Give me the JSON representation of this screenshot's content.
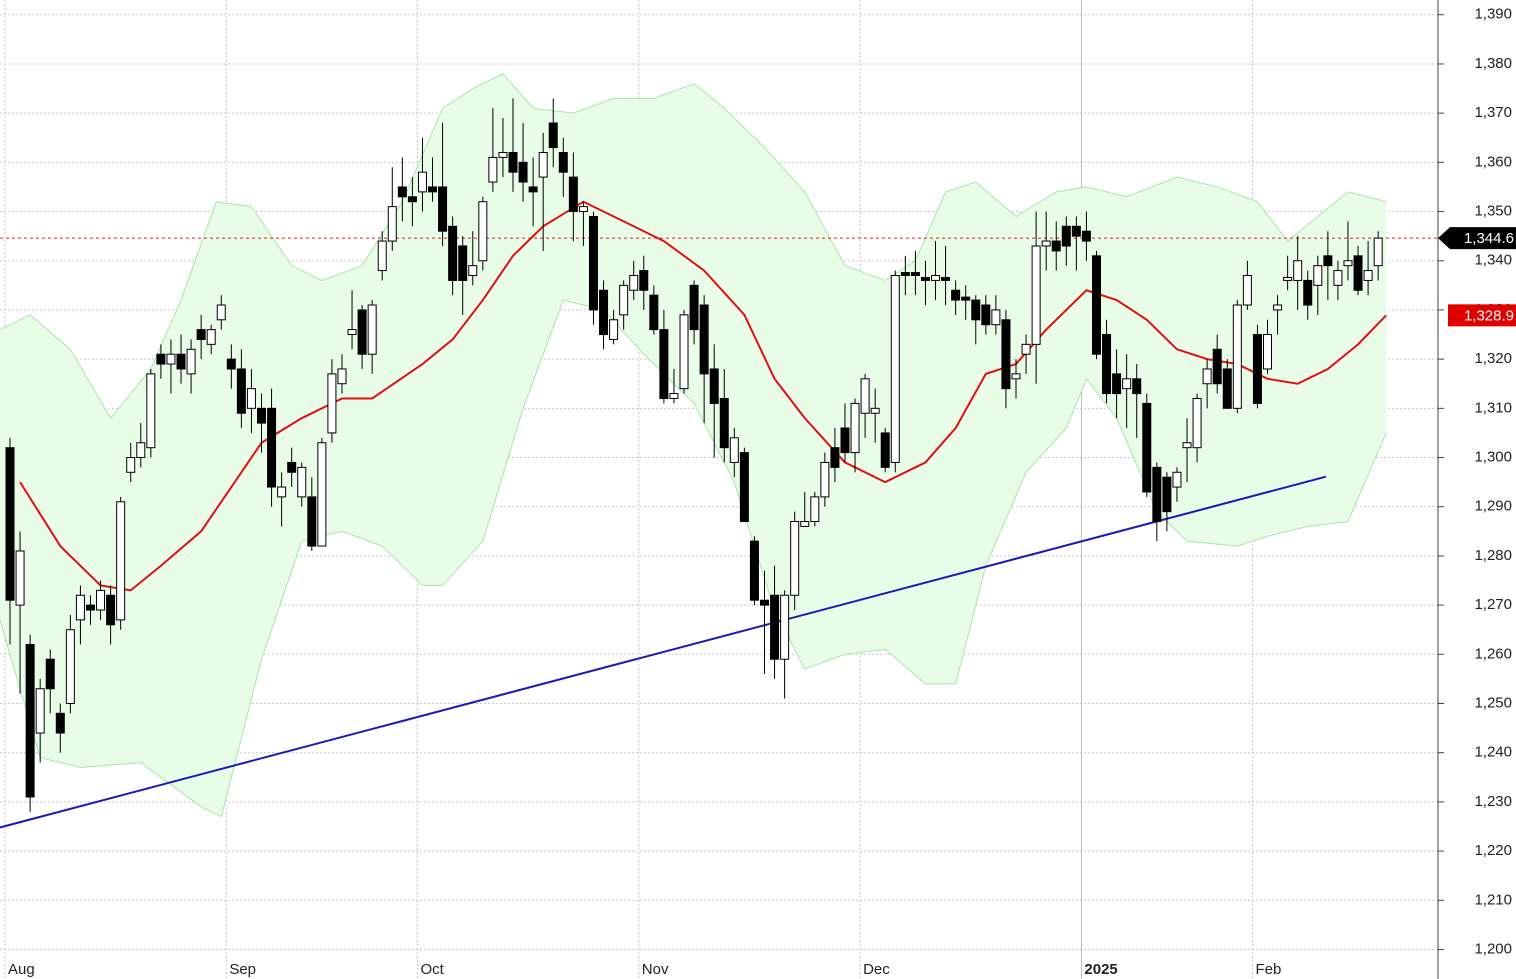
{
  "chart_data": {
    "type": "candlestick",
    "categories": [
      "Aug",
      null,
      null,
      null,
      null,
      null,
      null,
      null,
      null,
      null,
      null,
      null,
      null,
      null,
      null,
      null,
      null,
      null,
      null,
      null,
      null,
      null,
      "Sep",
      null,
      null,
      null,
      null,
      null,
      null,
      null,
      null,
      null,
      null,
      null,
      null,
      null,
      null,
      null,
      null,
      null,
      null,
      "Oct",
      null,
      null,
      null,
      null,
      null,
      null,
      null,
      null,
      null,
      null,
      null,
      null,
      null,
      null,
      null,
      null,
      null,
      null,
      null,
      null,
      null,
      "Nov",
      null,
      null,
      null,
      null,
      null,
      null,
      null,
      null,
      null,
      null,
      null,
      null,
      null,
      null,
      null,
      null,
      null,
      null,
      null,
      null,
      null,
      "Dec",
      null,
      null,
      null,
      null,
      null,
      null,
      null,
      null,
      null,
      null,
      null,
      null,
      null,
      null,
      null,
      null,
      null,
      null,
      null,
      null,
      null,
      "2025",
      null,
      null,
      null,
      null,
      null,
      null,
      null,
      null,
      null,
      null,
      null,
      null,
      null,
      null,
      null,
      null,
      "Feb",
      null,
      null,
      null,
      null,
      null,
      null,
      null,
      null,
      null,
      null,
      null
    ],
    "ohlc": [
      [
        1302,
        1304,
        1262,
        1271
      ],
      [
        1270,
        1285,
        1252,
        1281
      ],
      [
        1262,
        1264,
        1228,
        1231
      ],
      [
        1244,
        1255,
        1238,
        1253
      ],
      [
        1259,
        1261,
        1248,
        1253
      ],
      [
        1248,
        1250,
        1240,
        1244
      ],
      [
        1250,
        1268,
        1248,
        1265
      ],
      [
        1267,
        1274,
        1262,
        1272
      ],
      [
        1270,
        1272,
        1266,
        1269
      ],
      [
        1269,
        1275,
        1267,
        1273
      ],
      [
        1272,
        1274,
        1262,
        1266
      ],
      [
        1267,
        1292,
        1265,
        1291
      ],
      [
        1297,
        1303,
        1295,
        1300
      ],
      [
        1300,
        1307,
        1298,
        1303
      ],
      [
        1302,
        1318,
        1300,
        1317
      ],
      [
        1321,
        1323,
        1316,
        1319
      ],
      [
        1319,
        1324,
        1313,
        1321
      ],
      [
        1321,
        1325,
        1315,
        1318
      ],
      [
        1317,
        1324,
        1313,
        1322
      ],
      [
        1326,
        1329,
        1320,
        1324
      ],
      [
        1323,
        1327,
        1321,
        1326
      ],
      [
        1328,
        1333,
        1326,
        1331
      ],
      [
        1320,
        1323,
        1314,
        1318
      ],
      [
        1318,
        1322,
        1306,
        1309
      ],
      [
        1310,
        1318,
        1305,
        1314
      ],
      [
        1310,
        1313,
        1301,
        1307
      ],
      [
        1310,
        1314,
        1290,
        1294
      ],
      [
        1292,
        1297,
        1286,
        1294
      ],
      [
        1299,
        1302,
        1294,
        1297
      ],
      [
        1292,
        1299,
        1290,
        1298
      ],
      [
        1292,
        1296,
        1281,
        1282
      ],
      [
        1282,
        1304,
        1282,
        1303
      ],
      [
        1305,
        1320,
        1303,
        1317
      ],
      [
        1315,
        1321,
        1313,
        1318
      ],
      [
        1325,
        1334,
        1322,
        1326
      ],
      [
        1330,
        1331,
        1318,
        1321
      ],
      [
        1321,
        1332,
        1317,
        1331
      ],
      [
        1338,
        1346,
        1336,
        1344
      ],
      [
        1344,
        1359,
        1342,
        1351
      ],
      [
        1355,
        1361,
        1348,
        1353
      ],
      [
        1353,
        1357,
        1347,
        1352
      ],
      [
        1354,
        1365,
        1350,
        1358
      ],
      [
        1355,
        1361,
        1352,
        1354
      ],
      [
        1355,
        1368,
        1343,
        1346
      ],
      [
        1347,
        1349,
        1333,
        1336
      ],
      [
        1343,
        1345,
        1329,
        1336
      ],
      [
        1337,
        1346,
        1335,
        1339
      ],
      [
        1340,
        1353,
        1338,
        1352
      ],
      [
        1356,
        1371,
        1354,
        1361
      ],
      [
        1361,
        1369,
        1357,
        1362
      ],
      [
        1362,
        1373,
        1354,
        1358
      ],
      [
        1360,
        1368,
        1352,
        1356
      ],
      [
        1355,
        1361,
        1347,
        1354
      ],
      [
        1357,
        1366,
        1342,
        1362
      ],
      [
        1368,
        1373,
        1359,
        1363
      ],
      [
        1362,
        1365,
        1353,
        1358
      ],
      [
        1357,
        1362,
        1344,
        1350
      ],
      [
        1350,
        1352,
        1343,
        1351
      ],
      [
        1349,
        1350,
        1327,
        1330
      ],
      [
        1334,
        1336,
        1322,
        1325
      ],
      [
        1324,
        1330,
        1323,
        1328
      ],
      [
        1329,
        1336,
        1326,
        1335
      ],
      [
        1334,
        1340,
        1332,
        1337
      ],
      [
        1338,
        1341,
        1330,
        1334
      ],
      [
        1333,
        1335,
        1325,
        1326
      ],
      [
        1326,
        1330,
        1311,
        1312
      ],
      [
        1312,
        1318,
        1311,
        1313
      ],
      [
        1314,
        1330,
        1313,
        1329
      ],
      [
        1335,
        1336,
        1323,
        1326
      ],
      [
        1331,
        1333,
        1307,
        1317
      ],
      [
        1318,
        1323,
        1300,
        1311
      ],
      [
        1312,
        1318,
        1299,
        1302
      ],
      [
        1299,
        1306,
        1296,
        1304
      ],
      [
        1301,
        1302,
        1287,
        1287
      ],
      [
        1283,
        1284,
        1270,
        1271
      ],
      [
        1271,
        1277,
        1256,
        1270
      ],
      [
        1272,
        1278,
        1255,
        1259
      ],
      [
        1259,
        1273,
        1251,
        1272
      ],
      [
        1272,
        1289,
        1269,
        1287
      ],
      [
        1286,
        1293,
        1286,
        1287
      ],
      [
        1287,
        1293,
        1286,
        1292
      ],
      [
        1292,
        1301,
        1290,
        1299
      ],
      [
        1302,
        1306,
        1295,
        1298
      ],
      [
        1306,
        1311,
        1299,
        1301
      ],
      [
        1301,
        1312,
        1297,
        1311
      ],
      [
        1309,
        1317,
        1304,
        1316
      ],
      [
        1309,
        1314,
        1303,
        1310
      ],
      [
        1305,
        1306,
        1297,
        1298
      ],
      [
        1299,
        1338,
        1297,
        1337
      ],
      [
        1337.6,
        1341,
        1333,
        1337
      ],
      [
        1337.6,
        1342,
        1333,
        1337
      ],
      [
        1336.6,
        1340,
        1331,
        1336
      ],
      [
        1336,
        1344,
        1332,
        1337
      ],
      [
        1336.6,
        1343,
        1331,
        1336
      ],
      [
        1334,
        1336,
        1329,
        1332
      ],
      [
        1332.6,
        1335,
        1328,
        1332
      ],
      [
        1332,
        1333,
        1323,
        1328
      ],
      [
        1331,
        1333,
        1325,
        1327
      ],
      [
        1327,
        1333,
        1325,
        1330
      ],
      [
        1328,
        1330,
        1310,
        1314
      ],
      [
        1316,
        1320,
        1312,
        1317
      ],
      [
        1321,
        1325,
        1317,
        1323
      ],
      [
        1323,
        1350,
        1315,
        1343
      ],
      [
        1343,
        1350,
        1338,
        1344
      ],
      [
        1344,
        1348,
        1338,
        1342
      ],
      [
        1347,
        1349,
        1339,
        1343
      ],
      [
        1347,
        1349,
        1338,
        1345
      ],
      [
        1346,
        1350,
        1340,
        1344
      ],
      [
        1341,
        1342,
        1320,
        1321
      ],
      [
        1325,
        1328,
        1311,
        1313
      ],
      [
        1317,
        1322,
        1308,
        1313
      ],
      [
        1314,
        1321,
        1306,
        1316
      ],
      [
        1316,
        1319,
        1304,
        1313
      ],
      [
        1311,
        1313,
        1292,
        1293
      ],
      [
        1298,
        1299,
        1283,
        1287
      ],
      [
        1296,
        1297,
        1285,
        1289
      ],
      [
        1294,
        1298,
        1291,
        1297
      ],
      [
        1302,
        1308,
        1295,
        1303
      ],
      [
        1302,
        1313,
        1299,
        1312
      ],
      [
        1315,
        1320,
        1310,
        1318
      ],
      [
        1322,
        1325,
        1313,
        1315
      ],
      [
        1318,
        1320,
        1310,
        1310
      ],
      [
        1310,
        1332,
        1309,
        1331
      ],
      [
        1331,
        1340,
        1330,
        1337
      ],
      [
        1325,
        1327,
        1310,
        1311
      ],
      [
        1318,
        1328,
        1317,
        1325
      ],
      [
        1330,
        1333,
        1325,
        1331
      ],
      [
        1336,
        1341,
        1334,
        1336.6
      ],
      [
        1336,
        1345,
        1330,
        1340
      ],
      [
        1336,
        1338,
        1328,
        1331
      ],
      [
        1335,
        1341,
        1329,
        1339
      ],
      [
        1341,
        1346,
        1332,
        1339
      ],
      [
        1335,
        1340,
        1332,
        1338
      ],
      [
        1339,
        1348,
        1336,
        1340
      ],
      [
        1341,
        1343,
        1333,
        1334
      ],
      [
        1336,
        1344,
        1333,
        1338
      ],
      [
        1339,
        1346,
        1336,
        1344.6
      ]
    ],
    "up_color": "#ffffff",
    "down_color": "#000000",
    "ylim": [
      1194,
      1393
    ],
    "yticks": [
      {
        "value": 1200,
        "label": "1,200"
      },
      {
        "value": 1210,
        "label": "1,210"
      },
      {
        "value": 1220,
        "label": "1,220"
      },
      {
        "value": 1230,
        "label": "1,230"
      },
      {
        "value": 1240,
        "label": "1,240"
      },
      {
        "value": 1250,
        "label": "1,250"
      },
      {
        "value": 1260,
        "label": "1,260"
      },
      {
        "value": 1270,
        "label": "1,270"
      },
      {
        "value": 1280,
        "label": "1,280"
      },
      {
        "value": 1290,
        "label": "1,290"
      },
      {
        "value": 1300,
        "label": "1,300"
      },
      {
        "value": 1310,
        "label": "1,310"
      },
      {
        "value": 1320,
        "label": "1,320"
      },
      {
        "value": 1330,
        "label": "1,330"
      },
      {
        "value": 1340,
        "label": "1,340"
      },
      {
        "value": 1350,
        "label": "1,350"
      },
      {
        "value": 1360,
        "label": "1,360"
      },
      {
        "value": 1370,
        "label": "1,370"
      },
      {
        "value": 1380,
        "label": "1,380"
      },
      {
        "value": 1390,
        "label": "1,390"
      }
    ],
    "grid": true,
    "band": {
      "color": "#e8fce8",
      "edge": "#a6e6a6",
      "upper": {
        "x": [
          -1,
          2,
          6,
          10,
          14,
          17,
          20.5,
          24,
          28,
          31,
          35,
          39,
          43,
          46,
          49,
          52,
          56,
          60,
          64,
          68,
          71,
          75,
          79,
          83,
          87,
          90,
          93,
          96,
          100,
          104,
          107,
          111,
          116,
          120,
          124,
          127,
          130,
          133,
          136.8
        ],
        "values": [
          1326,
          1329,
          1322,
          1308,
          1318,
          1332,
          1352,
          1351,
          1339,
          1336,
          1339,
          1352,
          1371,
          1375,
          1378,
          1371,
          1370,
          1373,
          1373,
          1376,
          1371,
          1363,
          1354,
          1339,
          1336,
          1340,
          1354,
          1356,
          1349,
          1354,
          1355,
          1353,
          1357,
          1355,
          1352,
          1344,
          1349,
          1354,
          1352
        ]
      },
      "lower": {
        "x": [
          -1,
          3,
          7,
          13,
          19,
          21,
          25,
          29,
          33,
          37,
          41,
          43,
          47,
          51,
          55,
          59,
          63,
          68,
          72,
          76,
          79,
          83,
          87,
          91,
          94,
          97,
          101,
          105,
          107,
          110,
          114,
          117,
          122,
          125,
          129,
          133,
          136.8
        ],
        "values": [
          1267,
          1239,
          1237,
          1238,
          1229,
          1227,
          1259,
          1283,
          1285,
          1282,
          1274,
          1274,
          1283,
          1310,
          1332,
          1330,
          1321,
          1311,
          1295,
          1269,
          1257,
          1260,
          1261,
          1254,
          1254,
          1278,
          1297,
          1306,
          1316,
          1308,
          1289,
          1283,
          1282,
          1284,
          1286,
          1287,
          1305
        ]
      }
    },
    "ma": {
      "color": "#e01010",
      "x": [
        1,
        5,
        9,
        12,
        15,
        19,
        22,
        25,
        29,
        33,
        36,
        41,
        44,
        47,
        50,
        53,
        57,
        61,
        65,
        69,
        73,
        76,
        79,
        83,
        87,
        91,
        94,
        97,
        100,
        103,
        107,
        110,
        113,
        116,
        119,
        122,
        125,
        128,
        131,
        134,
        136.8
      ],
      "values": [
        1295,
        1282,
        1274,
        1273,
        1278,
        1285,
        1294,
        1303,
        1308,
        1312,
        1312,
        1319,
        1324,
        1332,
        1341,
        1347,
        1352,
        1348,
        1344,
        1338,
        1329,
        1316,
        1308,
        1299,
        1295,
        1299,
        1306,
        1317,
        1319,
        1326,
        1334,
        1332,
        1328,
        1322,
        1320,
        1319,
        1316,
        1315,
        1318,
        1323,
        1328.9
      ]
    },
    "trendline": {
      "color": "#1a1ab4",
      "x": [
        -1,
        130.8
      ],
      "values": [
        1224.8,
        1296.1
      ]
    },
    "last_price": {
      "value": 1344.6,
      "label": "1,344.6"
    },
    "ma_last": {
      "value": 1328.9,
      "label": "1,328.9"
    }
  }
}
